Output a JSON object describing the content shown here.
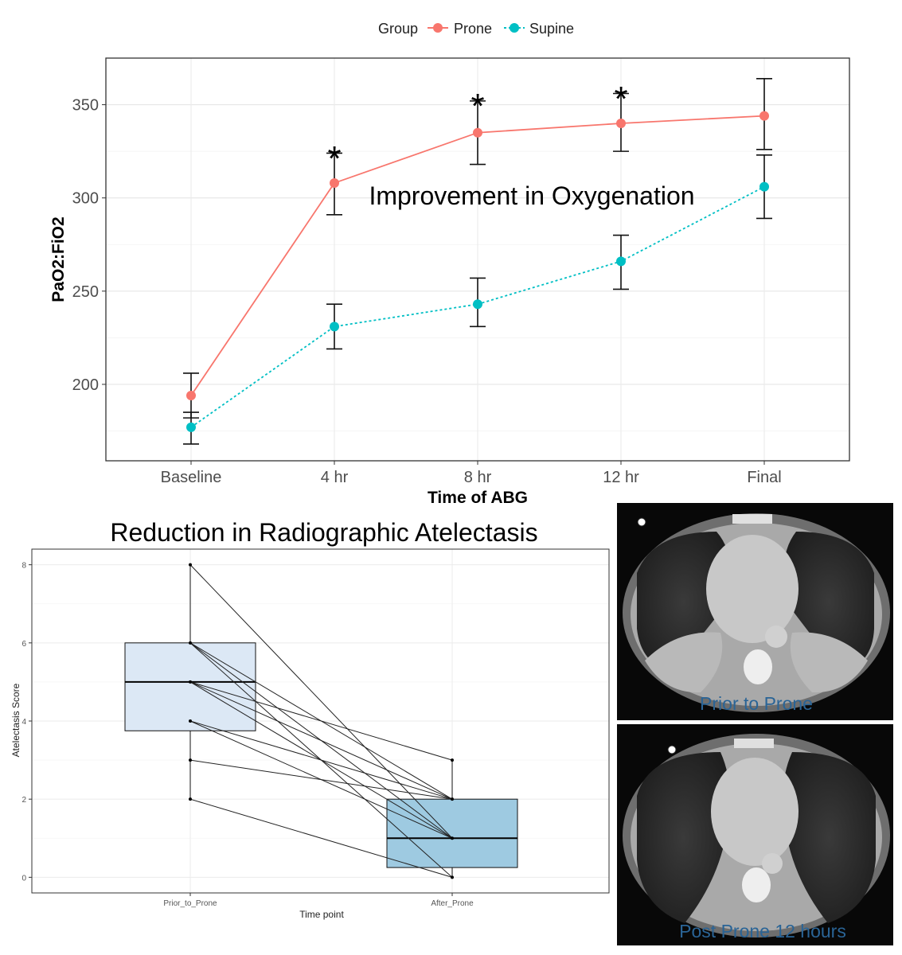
{
  "chart_data": [
    {
      "type": "line",
      "title": "Improvement in Oxygenation",
      "xlabel": "Time of ABG",
      "ylabel": "PaO2:FiO2",
      "legend_title": "Group",
      "legend_position": "top",
      "categories": [
        "Baseline",
        "4 hr",
        "8 hr",
        "12 hr",
        "Final"
      ],
      "yticks": [
        200,
        250,
        300,
        350
      ],
      "ylim": [
        159,
        375
      ],
      "grid": true,
      "series": [
        {
          "name": "Prone",
          "color": "#F8766D",
          "linestyle": "solid",
          "values": [
            194,
            308,
            335,
            340,
            344
          ],
          "err_low": [
            182,
            291,
            318,
            325,
            326
          ],
          "err_high": [
            206,
            324,
            352,
            356,
            364
          ]
        },
        {
          "name": "Supine",
          "color": "#00BFC4",
          "linestyle": "dotted",
          "values": [
            177,
            231,
            243,
            266,
            306
          ],
          "err_low": [
            168,
            219,
            231,
            251,
            289
          ],
          "err_high": [
            185,
            243,
            257,
            280,
            323
          ]
        }
      ],
      "annotations": [
        {
          "category": "4 hr",
          "y": 326,
          "text": "*"
        },
        {
          "category": "8 hr",
          "y": 354,
          "text": "*"
        },
        {
          "category": "12 hr",
          "y": 358,
          "text": "*"
        }
      ]
    },
    {
      "type": "box",
      "title": "Reduction in Radiographic Atelectasis",
      "xlabel": "Time point",
      "ylabel": "Atelectasis Score",
      "categories": [
        "Prior_to_Prone",
        "After_Prone"
      ],
      "yticks": [
        0,
        2,
        4,
        6,
        8
      ],
      "ylim": [
        -0.4,
        8.4
      ],
      "grid": true,
      "boxes": [
        {
          "category": "Prior_to_Prone",
          "q1": 3.75,
          "median": 5,
          "q3": 6,
          "whisker_low": 2,
          "whisker_high": 8,
          "fill": "#DCE8F5"
        },
        {
          "category": "After_Prone",
          "q1": 0.25,
          "median": 1,
          "q3": 2,
          "whisker_low": 0,
          "whisker_high": 3,
          "fill": "#9ECAE1"
        }
      ],
      "paired_points": [
        [
          8,
          1
        ],
        [
          6,
          2
        ],
        [
          6,
          1
        ],
        [
          6,
          0
        ],
        [
          5,
          3
        ],
        [
          5,
          2
        ],
        [
          5,
          1
        ],
        [
          4,
          2
        ],
        [
          4,
          1
        ],
        [
          3,
          2
        ],
        [
          2,
          0
        ]
      ]
    }
  ],
  "ct_images": {
    "top_label": "Prior to Prone",
    "bottom_label": "Post Prone 12 hours"
  }
}
